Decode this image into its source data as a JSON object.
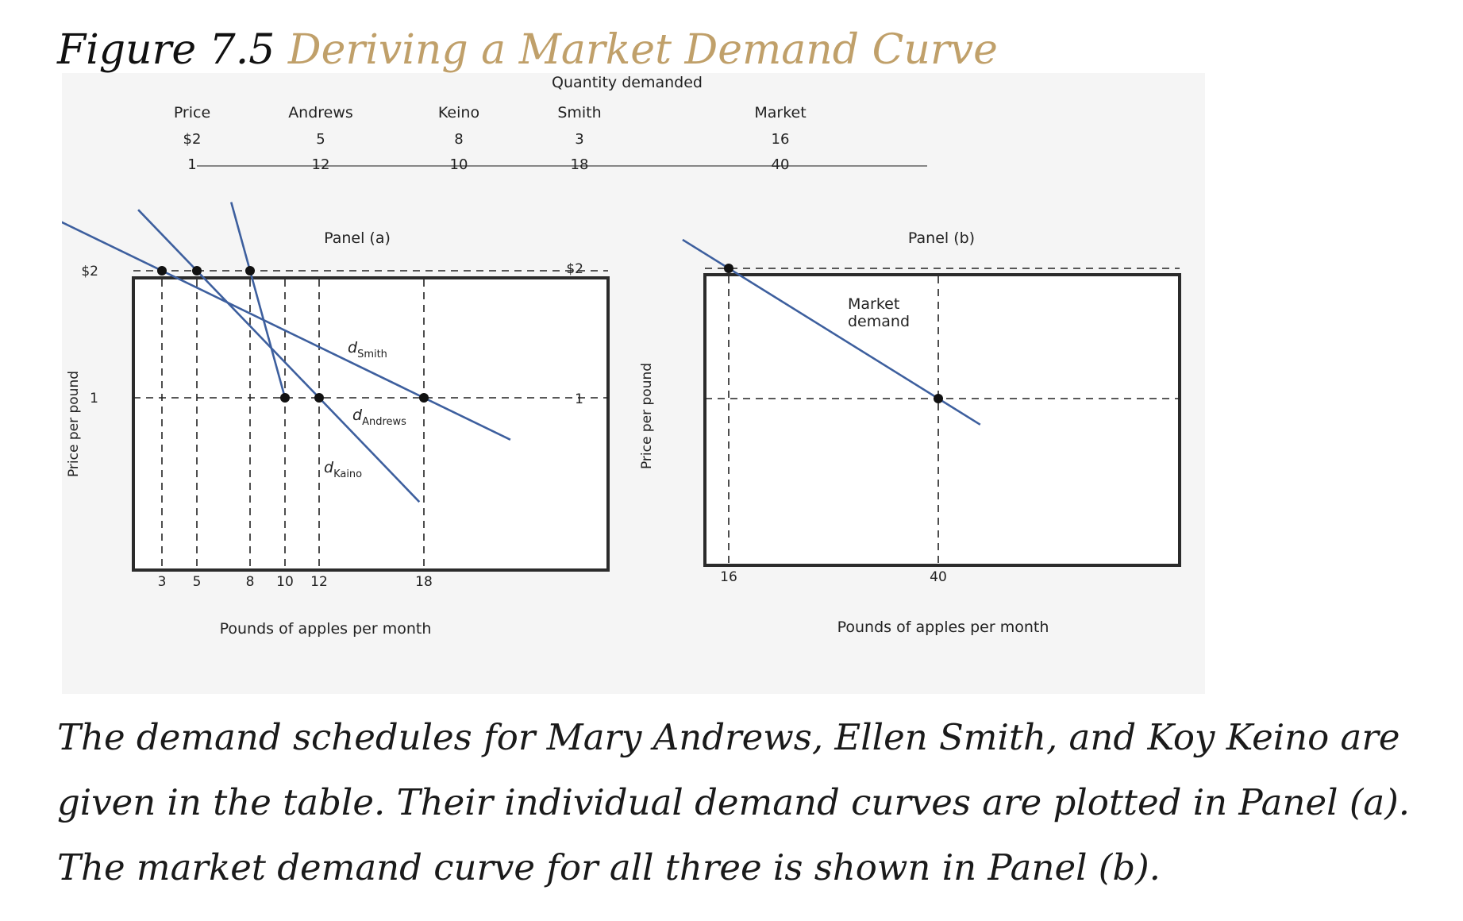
{
  "figure": {
    "number": "Figure 7.5",
    "title": "Deriving a Market Demand Curve",
    "caption": "The demand schedules for Mary Andrews, Ellen Smith, and Koy Keino are given in the table. Their individual demand curves are plotted in Panel (a). The market demand curve for all three is shown in Panel (b)."
  },
  "colors": {
    "curve": "#3d5f9e",
    "title_accent": "#c0a06a",
    "frame": "#2b2b2b",
    "figure_bg": "#f5f5f5"
  },
  "table": {
    "super_header": "Quantity demanded",
    "headers": [
      "Price",
      "Andrews",
      "Keino",
      "Smith",
      "Market"
    ],
    "rows": [
      [
        "$2",
        "5",
        "8",
        "3",
        "16"
      ],
      [
        "1",
        "12",
        "10",
        "18",
        "40"
      ]
    ]
  },
  "chart_data": [
    {
      "type": "line",
      "panel_label": "Panel (a)",
      "xlabel": "Pounds of apples per month",
      "ylabel": "Price per pound",
      "y_ticks": [
        {
          "value": 2,
          "label": "$2"
        },
        {
          "value": 1,
          "label": "1"
        }
      ],
      "x_ticks": [
        3,
        5,
        8,
        10,
        12,
        18
      ],
      "series": [
        {
          "name": "Smith",
          "label_main": "d",
          "label_sub": "Smith",
          "points": [
            {
              "x": 3,
              "y": 2
            },
            {
              "x": 18,
              "y": 1
            }
          ]
        },
        {
          "name": "Andrews",
          "label_main": "d",
          "label_sub": "Andrews",
          "points": [
            {
              "x": 5,
              "y": 2
            },
            {
              "x": 12,
              "y": 1
            }
          ]
        },
        {
          "name": "Kaino",
          "label_main": "d",
          "label_sub": "Kaino",
          "points": [
            {
              "x": 8,
              "y": 2
            },
            {
              "x": 10,
              "y": 1
            }
          ]
        }
      ]
    },
    {
      "type": "line",
      "panel_label": "Panel (b)",
      "xlabel": "Pounds of apples per month",
      "ylabel": "Price per pound",
      "y_ticks": [
        {
          "value": 2,
          "label": "$2"
        },
        {
          "value": 1,
          "label": "1"
        }
      ],
      "x_ticks": [
        16,
        40
      ],
      "series": [
        {
          "name": "Market demand",
          "label_lines": [
            "Market",
            "demand"
          ],
          "points": [
            {
              "x": 16,
              "y": 2
            },
            {
              "x": 40,
              "y": 1
            }
          ]
        }
      ]
    }
  ]
}
